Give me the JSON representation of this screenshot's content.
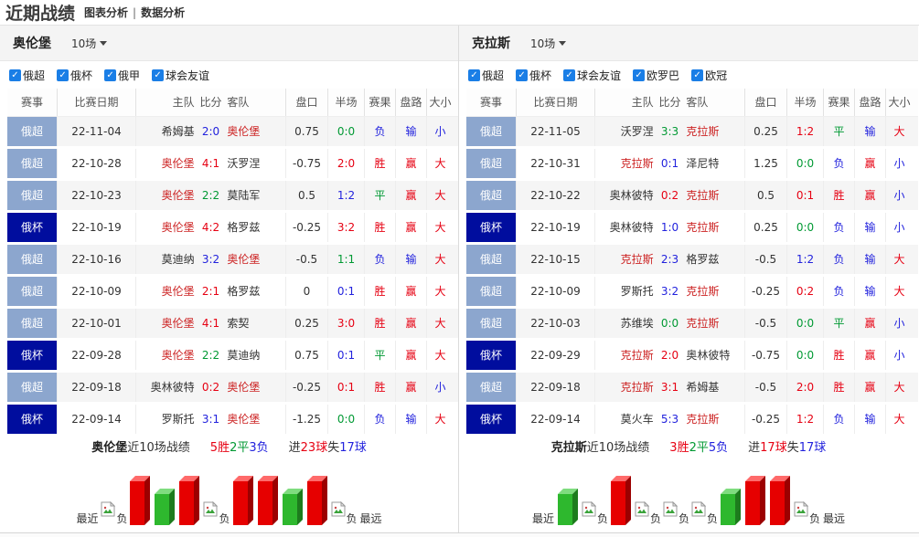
{
  "page": {
    "title": "近期战绩",
    "links": [
      "图表分析",
      "数据分析"
    ],
    "link_separator": "|"
  },
  "colors": {
    "red": "#e60012",
    "green": "#009933",
    "blue": "#2222dd",
    "focus_team": "#cc2222",
    "badge_super": "#8ca6ce",
    "badge_cup": "#000d9e",
    "checkbox": "#1a7ee6",
    "bar_win": "#e60000",
    "bar_draw": "#2eb82e"
  },
  "columns": [
    "赛事",
    "比赛日期",
    "主队",
    "比分",
    "客队",
    "盘口",
    "半场",
    "赛果",
    "盘路",
    "大小"
  ],
  "panels": [
    {
      "team": "奥伦堡",
      "range_label": "10场",
      "filters": [
        "俄超",
        "俄杯",
        "俄甲",
        "球会友谊"
      ],
      "rows": [
        {
          "league": "俄超",
          "cup": false,
          "date": "22-11-04",
          "home": "希姆基",
          "hf": false,
          "score": "2:0",
          "sc": "blue",
          "away": "奥伦堡",
          "af": true,
          "odds": "0.75",
          "half": "0:0",
          "hc": "green",
          "res": "负",
          "resc": "blue",
          "road": "输",
          "roadc": "blue",
          "size": "小",
          "sizec": "blue"
        },
        {
          "league": "俄超",
          "cup": false,
          "date": "22-10-28",
          "home": "奥伦堡",
          "hf": true,
          "score": "4:1",
          "sc": "red",
          "away": "沃罗涅",
          "af": false,
          "odds": "-0.75",
          "half": "2:0",
          "hc": "red",
          "res": "胜",
          "resc": "red",
          "road": "赢",
          "roadc": "red",
          "size": "大",
          "sizec": "red"
        },
        {
          "league": "俄超",
          "cup": false,
          "date": "22-10-23",
          "home": "奥伦堡",
          "hf": true,
          "score": "2:2",
          "sc": "green",
          "away": "莫陆军",
          "af": false,
          "odds": "0.5",
          "half": "1:2",
          "hc": "blue",
          "res": "平",
          "resc": "green",
          "road": "赢",
          "roadc": "red",
          "size": "大",
          "sizec": "red"
        },
        {
          "league": "俄杯",
          "cup": true,
          "date": "22-10-19",
          "home": "奥伦堡",
          "hf": true,
          "score": "4:2",
          "sc": "red",
          "away": "格罗兹",
          "af": false,
          "odds": "-0.25",
          "half": "3:2",
          "hc": "red",
          "res": "胜",
          "resc": "red",
          "road": "赢",
          "roadc": "red",
          "size": "大",
          "sizec": "red"
        },
        {
          "league": "俄超",
          "cup": false,
          "date": "22-10-16",
          "home": "莫迪纳",
          "hf": false,
          "score": "3:2",
          "sc": "blue",
          "away": "奥伦堡",
          "af": true,
          "odds": "-0.5",
          "half": "1:1",
          "hc": "green",
          "res": "负",
          "resc": "blue",
          "road": "输",
          "roadc": "blue",
          "size": "大",
          "sizec": "red"
        },
        {
          "league": "俄超",
          "cup": false,
          "date": "22-10-09",
          "home": "奥伦堡",
          "hf": true,
          "score": "2:1",
          "sc": "red",
          "away": "格罗兹",
          "af": false,
          "odds": "0",
          "half": "0:1",
          "hc": "blue",
          "res": "胜",
          "resc": "red",
          "road": "赢",
          "roadc": "red",
          "size": "大",
          "sizec": "red"
        },
        {
          "league": "俄超",
          "cup": false,
          "date": "22-10-01",
          "home": "奥伦堡",
          "hf": true,
          "score": "4:1",
          "sc": "red",
          "away": "索契",
          "af": false,
          "odds": "0.25",
          "half": "3:0",
          "hc": "red",
          "res": "胜",
          "resc": "red",
          "road": "赢",
          "roadc": "red",
          "size": "大",
          "sizec": "red"
        },
        {
          "league": "俄杯",
          "cup": true,
          "date": "22-09-28",
          "home": "奥伦堡",
          "hf": true,
          "score": "2:2",
          "sc": "green",
          "away": "莫迪纳",
          "af": false,
          "odds": "0.75",
          "half": "0:1",
          "hc": "blue",
          "res": "平",
          "resc": "green",
          "road": "赢",
          "roadc": "red",
          "size": "大",
          "sizec": "red"
        },
        {
          "league": "俄超",
          "cup": false,
          "date": "22-09-18",
          "home": "奥林彼特",
          "hf": false,
          "score": "0:2",
          "sc": "red",
          "away": "奥伦堡",
          "af": true,
          "odds": "-0.25",
          "half": "0:1",
          "hc": "red",
          "res": "胜",
          "resc": "red",
          "road": "赢",
          "roadc": "red",
          "size": "小",
          "sizec": "blue"
        },
        {
          "league": "俄杯",
          "cup": true,
          "date": "22-09-14",
          "home": "罗斯托",
          "hf": false,
          "score": "3:1",
          "sc": "blue",
          "away": "奥伦堡",
          "af": true,
          "odds": "-1.25",
          "half": "0:0",
          "hc": "green",
          "res": "负",
          "resc": "blue",
          "road": "输",
          "roadc": "blue",
          "size": "大",
          "sizec": "red"
        }
      ],
      "summary": {
        "team": "奥伦堡",
        "suffix": "近10场战绩",
        "record": [
          {
            "t": "5胜",
            "c": "red"
          },
          {
            "t": "2平",
            "c": "green"
          },
          {
            "t": "3负",
            "c": "blue"
          }
        ],
        "goals": [
          {
            "t": "进",
            "c": "black"
          },
          {
            "t": "23球",
            "c": "red"
          },
          {
            "t": "失",
            "c": "black"
          },
          {
            "t": "17球",
            "c": "blue"
          }
        ]
      },
      "chart": {
        "near_label": "最近",
        "far_label": "最远",
        "loss_label": "负",
        "items": [
          "loss",
          "win",
          "draw",
          "win",
          "loss",
          "win",
          "win",
          "draw",
          "win",
          "loss"
        ]
      }
    },
    {
      "team": "克拉斯",
      "range_label": "10场",
      "filters": [
        "俄超",
        "俄杯",
        "球会友谊",
        "欧罗巴",
        "欧冠"
      ],
      "rows": [
        {
          "league": "俄超",
          "cup": false,
          "date": "22-11-05",
          "home": "沃罗涅",
          "hf": false,
          "score": "3:3",
          "sc": "green",
          "away": "克拉斯",
          "af": true,
          "odds": "0.25",
          "half": "1:2",
          "hc": "red",
          "res": "平",
          "resc": "green",
          "road": "输",
          "roadc": "blue",
          "size": "大",
          "sizec": "red"
        },
        {
          "league": "俄超",
          "cup": false,
          "date": "22-10-31",
          "home": "克拉斯",
          "hf": true,
          "score": "0:1",
          "sc": "blue",
          "away": "泽尼特",
          "af": false,
          "odds": "1.25",
          "half": "0:0",
          "hc": "green",
          "res": "负",
          "resc": "blue",
          "road": "赢",
          "roadc": "red",
          "size": "小",
          "sizec": "blue"
        },
        {
          "league": "俄超",
          "cup": false,
          "date": "22-10-22",
          "home": "奥林彼特",
          "hf": false,
          "score": "0:2",
          "sc": "red",
          "away": "克拉斯",
          "af": true,
          "odds": "0.5",
          "half": "0:1",
          "hc": "red",
          "res": "胜",
          "resc": "red",
          "road": "赢",
          "roadc": "red",
          "size": "小",
          "sizec": "blue"
        },
        {
          "league": "俄杯",
          "cup": true,
          "date": "22-10-19",
          "home": "奥林彼特",
          "hf": false,
          "score": "1:0",
          "sc": "blue",
          "away": "克拉斯",
          "af": true,
          "odds": "0.25",
          "half": "0:0",
          "hc": "green",
          "res": "负",
          "resc": "blue",
          "road": "输",
          "roadc": "blue",
          "size": "小",
          "sizec": "blue"
        },
        {
          "league": "俄超",
          "cup": false,
          "date": "22-10-15",
          "home": "克拉斯",
          "hf": true,
          "score": "2:3",
          "sc": "blue",
          "away": "格罗兹",
          "af": false,
          "odds": "-0.5",
          "half": "1:2",
          "hc": "blue",
          "res": "负",
          "resc": "blue",
          "road": "输",
          "roadc": "blue",
          "size": "大",
          "sizec": "red"
        },
        {
          "league": "俄超",
          "cup": false,
          "date": "22-10-09",
          "home": "罗斯托",
          "hf": false,
          "score": "3:2",
          "sc": "blue",
          "away": "克拉斯",
          "af": true,
          "odds": "-0.25",
          "half": "0:2",
          "hc": "red",
          "res": "负",
          "resc": "blue",
          "road": "输",
          "roadc": "blue",
          "size": "大",
          "sizec": "red"
        },
        {
          "league": "俄超",
          "cup": false,
          "date": "22-10-03",
          "home": "苏维埃",
          "hf": false,
          "score": "0:0",
          "sc": "green",
          "away": "克拉斯",
          "af": true,
          "odds": "-0.5",
          "half": "0:0",
          "hc": "green",
          "res": "平",
          "resc": "green",
          "road": "赢",
          "roadc": "red",
          "size": "小",
          "sizec": "blue"
        },
        {
          "league": "俄杯",
          "cup": true,
          "date": "22-09-29",
          "home": "克拉斯",
          "hf": true,
          "score": "2:0",
          "sc": "red",
          "away": "奥林彼特",
          "af": false,
          "odds": "-0.75",
          "half": "0:0",
          "hc": "green",
          "res": "胜",
          "resc": "red",
          "road": "赢",
          "roadc": "red",
          "size": "小",
          "sizec": "blue"
        },
        {
          "league": "俄超",
          "cup": false,
          "date": "22-09-18",
          "home": "克拉斯",
          "hf": true,
          "score": "3:1",
          "sc": "red",
          "away": "希姆基",
          "af": false,
          "odds": "-0.5",
          "half": "2:0",
          "hc": "red",
          "res": "胜",
          "resc": "red",
          "road": "赢",
          "roadc": "red",
          "size": "大",
          "sizec": "red"
        },
        {
          "league": "俄杯",
          "cup": true,
          "date": "22-09-14",
          "home": "莫火车",
          "hf": false,
          "score": "5:3",
          "sc": "blue",
          "away": "克拉斯",
          "af": true,
          "odds": "-0.25",
          "half": "1:2",
          "hc": "red",
          "res": "负",
          "resc": "blue",
          "road": "输",
          "roadc": "blue",
          "size": "大",
          "sizec": "red"
        }
      ],
      "summary": {
        "team": "克拉斯",
        "suffix": "近10场战绩",
        "record": [
          {
            "t": "3胜",
            "c": "red"
          },
          {
            "t": "2平",
            "c": "green"
          },
          {
            "t": "5负",
            "c": "blue"
          }
        ],
        "goals": [
          {
            "t": "进",
            "c": "black"
          },
          {
            "t": "17球",
            "c": "red"
          },
          {
            "t": "失",
            "c": "black"
          },
          {
            "t": "17球",
            "c": "blue"
          }
        ]
      },
      "chart": {
        "near_label": "最近",
        "far_label": "最远",
        "loss_label": "负",
        "items": [
          "draw",
          "loss",
          "win",
          "loss",
          "loss",
          "loss",
          "draw",
          "win",
          "win",
          "loss"
        ]
      }
    }
  ]
}
